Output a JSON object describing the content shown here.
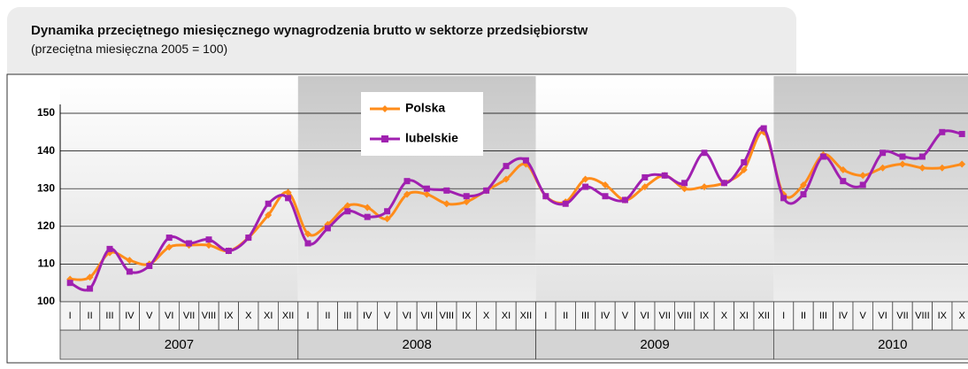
{
  "chart_data": {
    "type": "line",
    "title": "Dynamika przeciętnego miesięcznego wynagrodzenia brutto w sektorze przedsiębiorstw",
    "subtitle": "(przeciętna miesięczna 2005 = 100)",
    "years": [
      "2007",
      "2008",
      "2009",
      "2010"
    ],
    "categories": [
      "I",
      "II",
      "III",
      "IV",
      "V",
      "VI",
      "VII",
      "VIII",
      "IX",
      "X",
      "XI",
      "XII",
      "I",
      "II",
      "III",
      "IV",
      "V",
      "VI",
      "VII",
      "VIII",
      "IX",
      "X",
      "XI",
      "XII",
      "I",
      "II",
      "III",
      "IV",
      "V",
      "VI",
      "VII",
      "VIII",
      "IX",
      "X",
      "XI",
      "XII",
      "I",
      "II",
      "III",
      "IV",
      "V",
      "VI",
      "VII",
      "VIII",
      "IX",
      "X"
    ],
    "series": [
      {
        "name": "Polska",
        "color": "#ff8c1a",
        "marker": "diamond",
        "values": [
          106,
          106.5,
          113,
          111,
          110,
          114.5,
          115,
          115,
          113.5,
          117,
          123,
          129,
          118,
          120.5,
          125.5,
          125,
          122,
          128.5,
          128.5,
          126,
          126.5,
          129.5,
          132.5,
          136.5,
          128,
          126.5,
          132.5,
          131,
          127,
          130.5,
          133.5,
          130,
          130.5,
          131.5,
          135,
          145,
          128.5,
          131,
          139,
          135,
          133.5,
          135.5,
          136.5,
          135.5,
          135.5,
          136.5
        ]
      },
      {
        "name": "lubelskie",
        "color": "#a020b0",
        "marker": "square",
        "values": [
          105,
          103.5,
          114,
          108,
          109.5,
          117,
          115.5,
          116.5,
          113.5,
          117,
          126,
          127.5,
          115.5,
          119.5,
          124,
          122.5,
          124,
          132,
          130,
          129.5,
          128,
          129.5,
          136,
          137.5,
          128,
          126,
          130.5,
          128,
          127,
          133,
          133.5,
          131.5,
          139.5,
          131.5,
          137,
          146,
          127.5,
          128.5,
          138.5,
          132,
          131,
          139.5,
          138.5,
          138.5,
          145,
          144.5
        ]
      }
    ],
    "ylim": [
      100,
      150
    ],
    "yticks": [
      100,
      110,
      120,
      130,
      140,
      150
    ],
    "grid": true
  }
}
